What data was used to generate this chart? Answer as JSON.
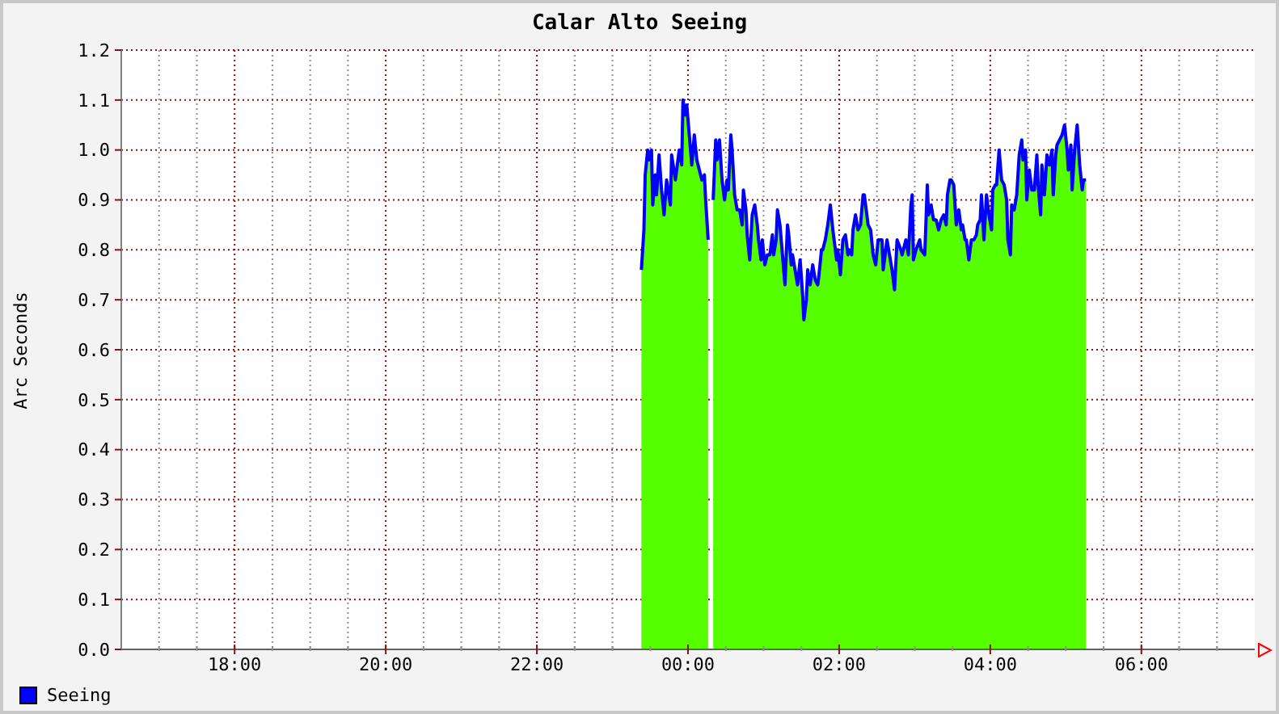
{
  "chart_data": {
    "type": "area",
    "title": "Calar Alto Seeing",
    "ylabel": "Arc Seconds",
    "xlim": [
      "2000-01-01T16:30",
      "2000-01-02T07:30"
    ],
    "xticks": [
      {
        "value": "2000-01-01T17:00",
        "label": null
      },
      {
        "value": "2000-01-01T17:30",
        "label": null
      },
      {
        "value": "2000-01-01T18:00",
        "label": "18:00"
      },
      {
        "value": "2000-01-01T18:30",
        "label": null
      },
      {
        "value": "2000-01-01T19:00",
        "label": null
      },
      {
        "value": "2000-01-01T19:30",
        "label": null
      },
      {
        "value": "2000-01-01T20:00",
        "label": "20:00"
      },
      {
        "value": "2000-01-01T20:30",
        "label": null
      },
      {
        "value": "2000-01-01T21:00",
        "label": null
      },
      {
        "value": "2000-01-01T21:30",
        "label": null
      },
      {
        "value": "2000-01-01T22:00",
        "label": "22:00"
      },
      {
        "value": "2000-01-01T22:30",
        "label": null
      },
      {
        "value": "2000-01-01T23:00",
        "label": null
      },
      {
        "value": "2000-01-01T23:30",
        "label": null
      },
      {
        "value": "2000-01-02T00:00",
        "label": "00:00"
      },
      {
        "value": "2000-01-02T00:30",
        "label": null
      },
      {
        "value": "2000-01-02T01:00",
        "label": null
      },
      {
        "value": "2000-01-02T01:30",
        "label": null
      },
      {
        "value": "2000-01-02T02:00",
        "label": "02:00"
      },
      {
        "value": "2000-01-02T02:30",
        "label": null
      },
      {
        "value": "2000-01-02T03:00",
        "label": null
      },
      {
        "value": "2000-01-02T03:30",
        "label": null
      },
      {
        "value": "2000-01-02T04:00",
        "label": "04:00"
      },
      {
        "value": "2000-01-02T04:30",
        "label": null
      },
      {
        "value": "2000-01-02T05:00",
        "label": null
      },
      {
        "value": "2000-01-02T05:30",
        "label": null
      },
      {
        "value": "2000-01-02T06:00",
        "label": "06:00"
      },
      {
        "value": "2000-01-02T06:30",
        "label": null
      },
      {
        "value": "2000-01-02T07:00",
        "label": null
      }
    ],
    "ylim": [
      0,
      1.2
    ],
    "yticks": [
      {
        "value": 0,
        "label": "0.0"
      },
      0.1,
      0.2,
      0.3,
      0.4,
      0.5,
      0.6,
      0.7,
      0.8,
      0.9,
      {
        "value": 1,
        "label": "1.0"
      },
      1.1,
      1.2
    ],
    "grid": true,
    "legend": "bottom left",
    "x": [
      "2000-01-01T23:23",
      "2000-01-01T23:25",
      "2000-01-01T23:26",
      "2000-01-01T23:28",
      "2000-01-01T23:29",
      "2000-01-01T23:31",
      "2000-01-01T23:32",
      "2000-01-01T23:34",
      "2000-01-01T23:35",
      "2000-01-01T23:37",
      "2000-01-01T23:39",
      "2000-01-01T23:41",
      "2000-01-01T23:43",
      "2000-01-01T23:46",
      "2000-01-01T23:47",
      "2000-01-01T23:50",
      "2000-01-01T23:53",
      "2000-01-01T23:55",
      "2000-01-01T23:56",
      "2000-01-01T23:58",
      "2000-01-01T23:59",
      "2000-01-02T00:01",
      "2000-01-02T00:03",
      "2000-01-02T00:05",
      "2000-01-02T00:07",
      "2000-01-02T00:09",
      "2000-01-02T00:11",
      "2000-01-02T00:13",
      "2000-01-02T00:14",
      "2000-01-02T00:16",
      "2000-01-02T00:18",
      "2000-01-02T00:20",
      "2000-01-02T00:22",
      "2000-01-02T00:23",
      "2000-01-02T00:25",
      "2000-01-02T00:27",
      "2000-01-02T00:29",
      "2000-01-02T00:31",
      "2000-01-02T00:32",
      "2000-01-02T00:34",
      "2000-01-02T00:35",
      "2000-01-02T00:37",
      "2000-01-02T00:39",
      "2000-01-02T00:41",
      "2000-01-02T00:43",
      "2000-01-02T00:44",
      "2000-01-02T00:46",
      "2000-01-02T00:47",
      "2000-01-02T00:49",
      "2000-01-02T00:51",
      "2000-01-02T00:53",
      "2000-01-02T00:55",
      "2000-01-02T00:56",
      "2000-01-02T00:58",
      "2000-01-02T00:59",
      "2000-01-02T01:01",
      "2000-01-02T01:03",
      "2000-01-02T01:05",
      "2000-01-02T01:07",
      "2000-01-02T01:08",
      "2000-01-02T01:10",
      "2000-01-02T01:11",
      "2000-01-02T01:13",
      "2000-01-02T01:15",
      "2000-01-02T01:17",
      "2000-01-02T01:19",
      "2000-01-02T01:20",
      "2000-01-02T01:22",
      "2000-01-02T01:23",
      "2000-01-02T01:25",
      "2000-01-02T01:27",
      "2000-01-02T01:29",
      "2000-01-02T01:31",
      "2000-01-02T01:32",
      "2000-01-02T01:34",
      "2000-01-02T01:35",
      "2000-01-02T01:37",
      "2000-01-02T01:39",
      "2000-01-02T01:41",
      "2000-01-02T01:43",
      "2000-01-02T01:44",
      "2000-01-02T01:46",
      "2000-01-02T01:47",
      "2000-01-02T01:49",
      "2000-01-02T01:51",
      "2000-01-02T01:53",
      "2000-01-02T01:55",
      "2000-01-02T01:56",
      "2000-01-02T01:58",
      "2000-01-02T01:59",
      "2000-01-02T02:01",
      "2000-01-02T02:03",
      "2000-01-02T02:05",
      "2000-01-02T02:07",
      "2000-01-02T02:08",
      "2000-01-02T02:10",
      "2000-01-02T02:11",
      "2000-01-02T02:13",
      "2000-01-02T02:15",
      "2000-01-02T02:17",
      "2000-01-02T02:19",
      "2000-01-02T02:20",
      "2000-01-02T02:23",
      "2000-01-02T02:25",
      "2000-01-02T02:27",
      "2000-01-02T02:29",
      "2000-01-02T02:31",
      "2000-01-02T02:34",
      "2000-01-02T02:35",
      "2000-01-02T02:38",
      "2000-01-02T02:40",
      "2000-01-02T02:42",
      "2000-01-02T02:44",
      "2000-01-02T02:46",
      "2000-01-02T02:49",
      "2000-01-02T02:50",
      "2000-01-02T02:53",
      "2000-01-02T02:55",
      "2000-01-02T02:57",
      "2000-01-02T02:58",
      "2000-01-02T02:59",
      "2000-01-02T03:01",
      "2000-01-02T03:04",
      "2000-01-02T03:05",
      "2000-01-02T03:08",
      "2000-01-02T03:10",
      "2000-01-02T03:11",
      "2000-01-02T03:13",
      "2000-01-02T03:15",
      "2000-01-02T03:17",
      "2000-01-02T03:19",
      "2000-01-02T03:21",
      "2000-01-02T03:23",
      "2000-01-02T03:25",
      "2000-01-02T03:26",
      "2000-01-02T03:28",
      "2000-01-02T03:29",
      "2000-01-02T03:31",
      "2000-01-02T03:33",
      "2000-01-02T03:35",
      "2000-01-02T03:37",
      "2000-01-02T03:38",
      "2000-01-02T03:40",
      "2000-01-02T03:41",
      "2000-01-02T03:43",
      "2000-01-02T03:45",
      "2000-01-02T03:47",
      "2000-01-02T03:49",
      "2000-01-02T03:50",
      "2000-01-02T03:52",
      "2000-01-02T03:53",
      "2000-01-02T03:55",
      "2000-01-02T03:57",
      "2000-01-02T03:59",
      "2000-01-02T04:01",
      "2000-01-02T04:02",
      "2000-01-02T04:04",
      "2000-01-02T04:05",
      "2000-01-02T04:07",
      "2000-01-02T04:09",
      "2000-01-02T04:11",
      "2000-01-02T04:13",
      "2000-01-02T04:14",
      "2000-01-02T04:16",
      "2000-01-02T04:17",
      "2000-01-02T04:19",
      "2000-01-02T04:21",
      "2000-01-02T04:23",
      "2000-01-02T04:25",
      "2000-01-02T04:26",
      "2000-01-02T04:28",
      "2000-01-02T04:29",
      "2000-01-02T04:31",
      "2000-01-02T04:33",
      "2000-01-02T04:35",
      "2000-01-02T04:37",
      "2000-01-02T04:38",
      "2000-01-02T04:40",
      "2000-01-02T04:41",
      "2000-01-02T04:43",
      "2000-01-02T04:45",
      "2000-01-02T04:47",
      "2000-01-02T04:49",
      "2000-01-02T04:50",
      "2000-01-02T04:52",
      "2000-01-02T04:53",
      "2000-01-02T04:55",
      "2000-01-02T04:57",
      "2000-01-02T04:59",
      "2000-01-02T05:01",
      "2000-01-02T05:02",
      "2000-01-02T05:04",
      "2000-01-02T05:05",
      "2000-01-02T05:07",
      "2000-01-02T05:09",
      "2000-01-02T05:11",
      "2000-01-02T05:13",
      "2000-01-02T05:14",
      "2000-01-02T05:16"
    ],
    "series": [
      {
        "color": "#55ff00",
        "values": [
          0.76,
          0.84,
          0.95,
          1.0,
          0.98,
          1.0,
          0.89,
          0.95,
          0.91,
          0.99,
          0.92,
          0.87,
          0.94,
          0.89,
          0.99,
          0.94,
          1.0,
          0.97,
          1.1,
          1.07,
          1.09,
          1.03,
          0.97,
          1.03,
          0.98,
          0.96,
          0.94,
          0.95,
          0.9,
          0.82,
          null,
          0.9,
          1.02,
          0.98,
          1.02,
          0.94,
          0.9,
          0.94,
          0.92,
          1.03,
          1.0,
          0.91,
          0.88,
          0.88,
          0.85,
          0.92,
          0.88,
          0.83,
          0.78,
          0.87,
          0.89,
          0.85,
          0.82,
          0.78,
          0.82,
          0.77,
          0.79,
          0.79,
          0.83,
          0.79,
          0.82,
          0.88,
          0.85,
          0.79,
          0.73,
          0.85,
          0.83,
          0.77,
          0.79,
          0.76,
          0.73,
          0.78,
          0.71,
          0.66,
          0.7,
          0.76,
          0.73,
          0.77,
          0.74,
          0.73,
          0.75,
          0.8,
          0.8,
          0.82,
          0.85,
          0.89,
          0.84,
          0.82,
          0.78,
          0.8,
          0.75,
          0.82,
          0.83,
          0.79,
          0.8,
          0.79,
          0.84,
          0.87,
          0.84,
          0.85,
          0.91,
          0.91,
          0.85,
          0.84,
          0.79,
          0.77,
          0.82,
          0.82,
          0.76,
          0.82,
          0.79,
          0.76,
          0.72,
          0.82,
          0.8,
          0.79,
          0.82,
          0.79,
          0.89,
          0.91,
          0.78,
          0.8,
          0.82,
          0.8,
          0.79,
          0.93,
          0.87,
          0.89,
          0.86,
          0.86,
          0.84,
          0.86,
          0.87,
          0.85,
          0.91,
          0.94,
          0.94,
          0.93,
          0.85,
          0.88,
          0.84,
          0.85,
          0.82,
          0.82,
          0.78,
          0.82,
          0.82,
          0.83,
          0.85,
          0.86,
          0.91,
          0.82,
          0.91,
          0.87,
          0.84,
          0.92,
          0.93,
          0.93,
          1.0,
          0.94,
          0.93,
          0.9,
          0.82,
          0.79,
          0.89,
          0.88,
          0.91,
          0.99,
          1.02,
          0.98,
          1.0,
          0.9,
          0.96,
          0.92,
          0.92,
          0.99,
          0.93,
          0.87,
          0.97,
          0.91,
          0.99,
          0.97,
          1.0,
          0.91,
          0.99,
          1.01,
          1.02,
          1.03,
          1.05,
          1.0,
          0.96,
          1.01,
          0.92,
          1.0,
          1.05,
          0.97,
          0.92,
          0.94,
          0.94
        ]
      },
      {
        "type": "line",
        "name": "Seeing",
        "color": "#0000ff",
        "values": [
          0.76,
          0.84,
          0.95,
          1.0,
          0.98,
          1.0,
          0.89,
          0.95,
          0.91,
          0.99,
          0.92,
          0.87,
          0.94,
          0.89,
          0.99,
          0.94,
          1.0,
          0.97,
          1.1,
          1.07,
          1.09,
          1.03,
          0.97,
          1.03,
          0.98,
          0.96,
          0.94,
          0.95,
          0.9,
          0.82,
          null,
          0.9,
          1.02,
          0.98,
          1.02,
          0.94,
          0.9,
          0.94,
          0.92,
          1.03,
          1.0,
          0.91,
          0.88,
          0.88,
          0.85,
          0.92,
          0.88,
          0.83,
          0.78,
          0.87,
          0.89,
          0.85,
          0.82,
          0.78,
          0.82,
          0.77,
          0.79,
          0.79,
          0.83,
          0.79,
          0.82,
          0.88,
          0.85,
          0.79,
          0.73,
          0.85,
          0.83,
          0.77,
          0.79,
          0.76,
          0.73,
          0.78,
          0.71,
          0.66,
          0.7,
          0.76,
          0.73,
          0.77,
          0.74,
          0.73,
          0.75,
          0.8,
          0.8,
          0.82,
          0.85,
          0.89,
          0.84,
          0.82,
          0.78,
          0.8,
          0.75,
          0.82,
          0.83,
          0.79,
          0.8,
          0.79,
          0.84,
          0.87,
          0.84,
          0.85,
          0.91,
          0.91,
          0.85,
          0.84,
          0.79,
          0.77,
          0.82,
          0.82,
          0.76,
          0.82,
          0.79,
          0.76,
          0.72,
          0.82,
          0.8,
          0.79,
          0.82,
          0.79,
          0.89,
          0.91,
          0.78,
          0.8,
          0.82,
          0.8,
          0.79,
          0.93,
          0.87,
          0.89,
          0.86,
          0.86,
          0.84,
          0.86,
          0.87,
          0.85,
          0.91,
          0.94,
          0.94,
          0.93,
          0.85,
          0.88,
          0.84,
          0.85,
          0.82,
          0.82,
          0.78,
          0.82,
          0.82,
          0.83,
          0.85,
          0.86,
          0.91,
          0.82,
          0.91,
          0.87,
          0.84,
          0.92,
          0.93,
          0.93,
          1.0,
          0.94,
          0.93,
          0.9,
          0.82,
          0.79,
          0.89,
          0.88,
          0.91,
          0.99,
          1.02,
          0.98,
          1.0,
          0.9,
          0.96,
          0.92,
          0.92,
          0.99,
          0.93,
          0.87,
          0.97,
          0.91,
          0.99,
          0.97,
          1.0,
          0.91,
          0.99,
          1.01,
          1.02,
          1.03,
          1.05,
          1.0,
          0.96,
          1.01,
          0.92,
          1.0,
          1.05,
          0.97,
          0.92,
          0.94,
          0.94
        ]
      }
    ]
  }
}
